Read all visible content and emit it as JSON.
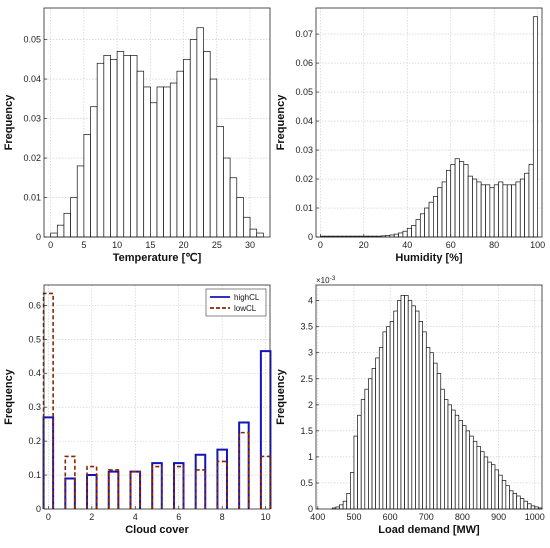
{
  "chart_data": [
    {
      "id": "temperature",
      "type": "bar",
      "xlabel": "Temperature [℃]",
      "ylabel": "Frequency",
      "xlim": [
        -1,
        33
      ],
      "ylim": [
        0,
        0.058
      ],
      "xticks": [
        0,
        5,
        10,
        15,
        20,
        25,
        30
      ],
      "yticks": [
        0,
        0.01,
        0.02,
        0.03,
        0.04,
        0.05
      ],
      "ytick_labels": [
        "0",
        "0.01",
        "0.02",
        "0.03",
        "0.04",
        "0.05"
      ],
      "grid": true,
      "bin_start": 0,
      "bin_width": 1,
      "values": [
        0.001,
        0.003,
        0.006,
        0.01,
        0.018,
        0.026,
        0.033,
        0.044,
        0.046,
        0.045,
        0.047,
        0.046,
        0.046,
        0.042,
        0.038,
        0.034,
        0.038,
        0.038,
        0.039,
        0.042,
        0.045,
        0.05,
        0.053,
        0.047,
        0.04,
        0.028,
        0.02,
        0.015,
        0.01,
        0.005,
        0.002,
        0.001
      ]
    },
    {
      "id": "humidity",
      "type": "bar",
      "xlabel": "Humidity [%]",
      "ylabel": "Frequency",
      "xlim": [
        -2,
        102
      ],
      "ylim": [
        0,
        0.079
      ],
      "xticks": [
        0,
        20,
        40,
        60,
        80,
        100
      ],
      "yticks": [
        0,
        0.01,
        0.02,
        0.03,
        0.04,
        0.05,
        0.06,
        0.07
      ],
      "ytick_labels": [
        "0",
        "0.01",
        "0.02",
        "0.03",
        "0.04",
        "0.05",
        "0.06",
        "0.07"
      ],
      "grid": true,
      "bin_start": 0,
      "bin_width": 2,
      "values": [
        0.0003,
        0.0003,
        0.0003,
        0.0003,
        0.0003,
        0.0003,
        0.0003,
        0.0003,
        0.0003,
        0.0003,
        0.0003,
        0.0003,
        0.0003,
        0.0003,
        0.0004,
        0.0005,
        0.0007,
        0.001,
        0.0014,
        0.002,
        0.003,
        0.004,
        0.006,
        0.008,
        0.01,
        0.012,
        0.014,
        0.017,
        0.019,
        0.023,
        0.025,
        0.027,
        0.026,
        0.025,
        0.021,
        0.02,
        0.019,
        0.018,
        0.018,
        0.017,
        0.018,
        0.019,
        0.018,
        0.018,
        0.018,
        0.019,
        0.02,
        0.022,
        0.025,
        0.076
      ]
    },
    {
      "id": "cloud",
      "type": "bar",
      "xlabel": "Cloud cover",
      "ylabel": "Frequency",
      "xlim": [
        -0.2,
        10.2
      ],
      "ylim": [
        0,
        0.66
      ],
      "xticks": [
        0,
        2,
        4,
        6,
        8,
        10
      ],
      "yticks": [
        0,
        0.1,
        0.2,
        0.3,
        0.4,
        0.5,
        0.6
      ],
      "ytick_labels": [
        "0",
        "0.1",
        "0.2",
        "0.3",
        "0.4",
        "0.5",
        "0.6"
      ],
      "grid": true,
      "legend_position": "top-right",
      "categories": [
        0,
        1,
        2,
        3,
        4,
        5,
        6,
        7,
        8,
        9,
        10
      ],
      "series": [
        {
          "name": "highCL",
          "color": "#1414b8",
          "style": "solid",
          "values": [
            0.27,
            0.09,
            0.1,
            0.11,
            0.11,
            0.135,
            0.135,
            0.16,
            0.175,
            0.255,
            0.465
          ]
        },
        {
          "name": "lowCL",
          "color": "#8b2500",
          "style": "dashed",
          "values": [
            0.635,
            0.155,
            0.125,
            0.115,
            0.11,
            0.125,
            0.125,
            0.115,
            0.14,
            0.225,
            0.155
          ]
        }
      ]
    },
    {
      "id": "load",
      "type": "bar",
      "xlabel": "Load demand [MW]",
      "ylabel": "Frequency",
      "xlim": [
        395,
        1020
      ],
      "ylim": [
        0,
        0.0043
      ],
      "xticks": [
        400,
        500,
        600,
        700,
        800,
        900,
        1000
      ],
      "yticks": [
        0,
        0.0005,
        0.001,
        0.0015,
        0.002,
        0.0025,
        0.003,
        0.0035,
        0.004
      ],
      "ytick_labels": [
        "0",
        "0.5",
        "1",
        "1.5",
        "2",
        "2.5",
        "3",
        "3.5",
        "4"
      ],
      "y_exponent": "×10",
      "y_exponent_power": "-3",
      "grid": true,
      "bin_start": 440,
      "bin_width": 10,
      "values": [
        2e-05,
        4e-05,
        8e-05,
        0.00015,
        0.0003,
        0.0007,
        0.0014,
        0.0018,
        0.0021,
        0.0023,
        0.0025,
        0.0027,
        0.0029,
        0.0031,
        0.0034,
        0.0035,
        0.0036,
        0.0038,
        0.004,
        0.0041,
        0.0041,
        0.004,
        0.0039,
        0.0038,
        0.0036,
        0.0034,
        0.0031,
        0.003,
        0.0028,
        0.0026,
        0.0023,
        0.0021,
        0.002,
        0.0019,
        0.0018,
        0.0017,
        0.0016,
        0.0015,
        0.0014,
        0.0013,
        0.0012,
        0.0011,
        0.001,
        0.0009,
        0.00085,
        0.00075,
        0.00065,
        0.00055,
        0.00045,
        0.00035,
        0.0003,
        0.00025,
        0.0002,
        0.00015,
        0.0001,
        6e-05,
        4e-05,
        2e-05
      ]
    }
  ]
}
